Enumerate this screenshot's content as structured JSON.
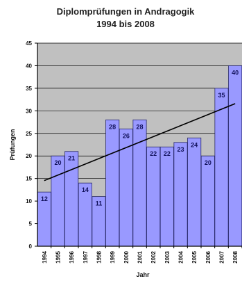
{
  "chart_data": {
    "type": "bar",
    "title": [
      "Diplomprüfungen in Andragogik",
      "1994 bis 2008"
    ],
    "xlabel": "Jahr",
    "ylabel": "Prüfungen",
    "categories": [
      "1994",
      "1995",
      "1996",
      "1997",
      "1998",
      "1999",
      "2000",
      "2001",
      "2002",
      "2003",
      "2004",
      "2005",
      "2006",
      "2007",
      "2008"
    ],
    "values": [
      12,
      20,
      21,
      14,
      11,
      28,
      26,
      28,
      22,
      22,
      23,
      24,
      20,
      35,
      40
    ],
    "ylim": [
      0,
      45
    ],
    "yticks": [
      0,
      5,
      10,
      15,
      20,
      25,
      30,
      35,
      40,
      45
    ],
    "trendline": {
      "type": "linear"
    },
    "grid": true,
    "colors": {
      "bar_fill": "#9999ff",
      "bar_stroke": "#2a2a6a",
      "plot_bg": "#c0c0c0",
      "grid": "#000000",
      "trend": "#000000"
    }
  }
}
